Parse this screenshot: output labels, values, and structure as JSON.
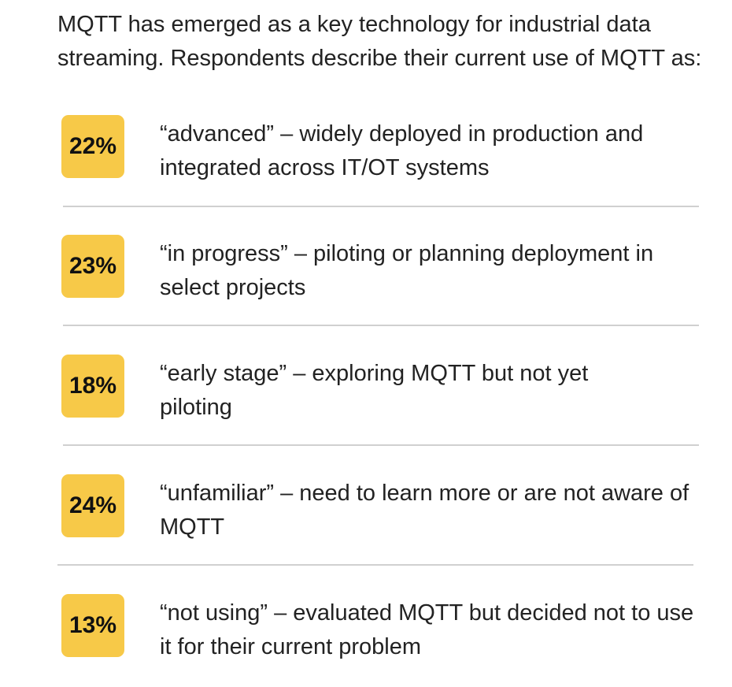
{
  "intro": "MQTT has emerged as a key technology for industrial data streaming. Respondents describe their current use of MQTT as:",
  "colors": {
    "badge": "#f7c948",
    "text": "#222222",
    "divider": "#d0d0d0"
  },
  "items": [
    {
      "percent": "22%",
      "value": 22,
      "text": "“advanced” – widely deployed in production and integrated across IT/OT systems"
    },
    {
      "percent": "23%",
      "value": 23,
      "text": "“in progress” – piloting or planning deployment in select projects"
    },
    {
      "percent": "18%",
      "value": 18,
      "text": "“early stage” – exploring MQTT but not yet piloting"
    },
    {
      "percent": "24%",
      "value": 24,
      "text": "“unfamiliar” – need to learn more or are not aware of MQTT"
    },
    {
      "percent": "13%",
      "value": 13,
      "text": "“not using” – evaluated MQTT but decided not to use it for their current problem"
    }
  ]
}
